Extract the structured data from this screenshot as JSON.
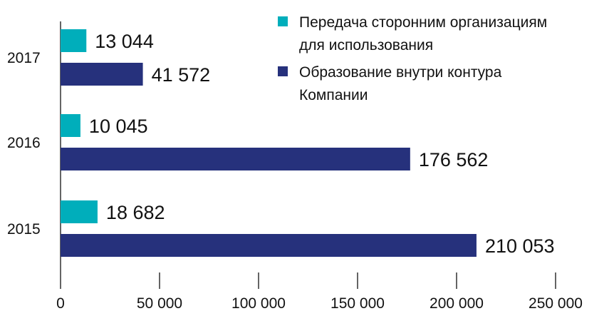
{
  "chart_data": {
    "type": "bar",
    "orientation": "horizontal",
    "categories": [
      "2017",
      "2016",
      "2015"
    ],
    "series": [
      {
        "name": "Передача сторонним организациям для использования",
        "legend_lines": [
          "Передача сторонним организациям",
          "для использования"
        ],
        "color": "#00aebb",
        "values": [
          13044,
          10045,
          18682
        ],
        "labels": [
          "13 044",
          "10 045",
          "18 682"
        ]
      },
      {
        "name": "Образование внутри контура Компании",
        "legend_lines": [
          "Образование внутри контура",
          "Компании"
        ],
        "color": "#26317c",
        "values": [
          41572,
          176562,
          210053
        ],
        "labels": [
          "41 572",
          "176 562",
          "210 053"
        ]
      }
    ],
    "xlim": [
      0,
      250000
    ],
    "xticks": [
      0,
      50000,
      100000,
      150000,
      200000,
      250000
    ],
    "xtick_labels": [
      "0",
      "50 000",
      "100 000",
      "150 000",
      "200 000",
      "250 000"
    ],
    "legend_position": "top-right",
    "grid": false
  }
}
